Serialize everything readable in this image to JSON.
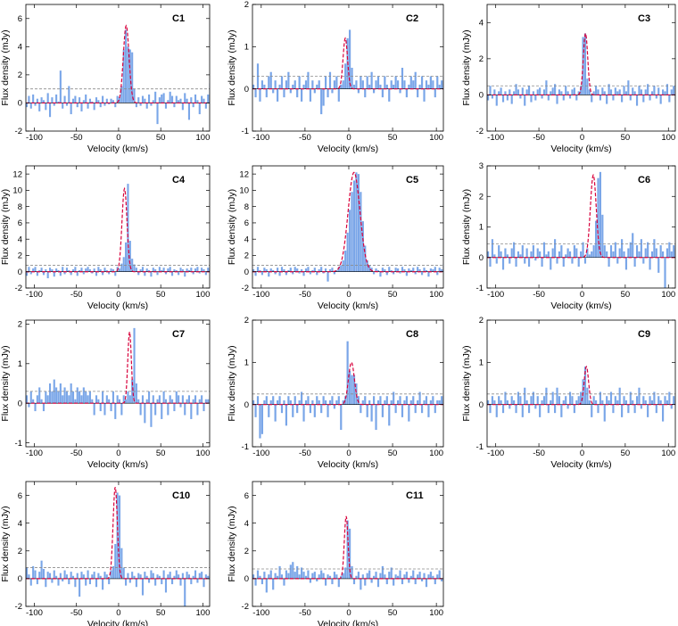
{
  "figure": {
    "style": {
      "bar_color": "#7aa6e8",
      "fit_color": "#d8003b",
      "rms_color": "#8c8c8c",
      "baseline_color": "#000000"
    },
    "shared": {
      "xlabel": "Velocity (km/s)",
      "ylabel": "Flux density (mJy)",
      "xlim": [
        -110,
        108
      ],
      "xticks": [
        -100,
        -50,
        0,
        50,
        100
      ]
    }
  },
  "chart_data": [
    {
      "type": "bar",
      "name": "C1",
      "title": "C1",
      "xlabel": "Velocity (km/s)",
      "ylabel": "Flux density (mJy)",
      "xlim": [
        -110,
        108
      ],
      "ylim": [
        -2,
        7
      ],
      "yticks": [
        -2,
        0,
        2,
        4,
        6
      ],
      "rms_level": 1.0,
      "line": {
        "center": 9,
        "peak": 5.5,
        "fwhm": 8
      },
      "channels": {
        "start": -110,
        "width": 2.5
      },
      "values": [
        -0.3,
        0.5,
        -0.4,
        0.6,
        -0.2,
        0.3,
        -0.6,
        0.4,
        0.2,
        -0.5,
        0.7,
        -1.0,
        0.4,
        -0.2,
        0.6,
        0.1,
        2.3,
        -0.4,
        0.5,
        -0.2,
        1.2,
        -0.8,
        0.3,
        0.5,
        -0.3,
        0.4,
        -0.6,
        0.2,
        0.6,
        -0.4,
        0.3,
        0.1,
        -0.5,
        0.4,
        0.2,
        -0.3,
        0.5,
        -0.2,
        0.3,
        -0.1,
        0.3,
        0.2,
        -0.3,
        0.5,
        0.4,
        1.2,
        3.8,
        5.2,
        4.0,
        3.8,
        3.6,
        1.0,
        -0.3,
        0.4,
        -0.2,
        0.5,
        0.3,
        -0.4,
        0.6,
        -0.2,
        0.2,
        0.8,
        -1.5,
        0.4,
        0.6,
        0.7,
        -0.4,
        0.2,
        0.8,
        0.5,
        -0.3,
        0.5,
        0.2,
        0.3,
        -0.5,
        0.7,
        0.3,
        -1.2,
        0.4,
        -0.3,
        0.6,
        0.2,
        -0.8,
        0.5,
        0.3,
        -0.4,
        0.6,
        1.4
      ]
    },
    {
      "type": "bar",
      "name": "C2",
      "title": "C2",
      "xlabel": "Velocity (km/s)",
      "ylabel": "Flux density (mJy)",
      "xlim": [
        -110,
        108
      ],
      "ylim": [
        -1,
        2
      ],
      "yticks": [
        -1,
        0,
        1,
        2
      ],
      "rms_level": 0.3,
      "line": {
        "center": -4,
        "peak": 1.2,
        "fwhm": 6
      },
      "channels": {
        "start": -110,
        "width": 2.5
      },
      "values": [
        0.1,
        -0.2,
        0.6,
        -0.3,
        0.2,
        0.1,
        -0.2,
        0.3,
        0.4,
        -0.1,
        0.2,
        -0.3,
        0.1,
        0.3,
        -0.2,
        0.2,
        0.4,
        -0.1,
        0.1,
        0.2,
        -0.2,
        0.3,
        -0.3,
        0.1,
        0.2,
        0.4,
        -0.3,
        0.2,
        -0.1,
        0.1,
        0.2,
        -0.6,
        -0.4,
        0.3,
        -0.2,
        0.4,
        -0.1,
        0.2,
        0.3,
        -0.3,
        0.1,
        0.2,
        0.6,
        1.2,
        1.4,
        0.5,
        0.1,
        0.2,
        -0.1,
        0.3,
        0.2,
        -0.2,
        0.3,
        0.1,
        0.4,
        -0.1,
        0.2,
        0.3,
        0.1,
        -0.2,
        0.3,
        0.1,
        -0.3,
        0.2,
        0.1,
        0.3,
        0.2,
        -0.1,
        0.5,
        0.2,
        -0.2,
        0.1,
        0.3,
        0.2,
        0.4,
        -0.2,
        0.1,
        0.3,
        -0.3,
        0.2,
        0.1,
        0.3,
        0.2,
        -0.2,
        0.3,
        0.1,
        0.2,
        0.3
      ]
    },
    {
      "type": "bar",
      "name": "C3",
      "title": "C3",
      "xlabel": "Velocity (km/s)",
      "ylabel": "Flux density (mJy)",
      "xlim": [
        -110,
        108
      ],
      "ylim": [
        -2,
        5
      ],
      "yticks": [
        -2,
        0,
        2,
        4
      ],
      "rms_level": 0.5,
      "line": {
        "center": 4,
        "peak": 3.4,
        "fwhm": 6
      },
      "channels": {
        "start": -110,
        "width": 2.5
      },
      "values": [
        -0.3,
        0.5,
        -0.2,
        0.3,
        -0.6,
        0.2,
        0.4,
        -0.4,
        0.2,
        -0.3,
        0.3,
        -0.5,
        0.2,
        0.6,
        0.3,
        -0.2,
        0.4,
        -0.6,
        0.3,
        0.5,
        -0.4,
        0.2,
        -0.3,
        0.3,
        0.4,
        -0.2,
        0.3,
        0.8,
        -0.3,
        0.2,
        0.4,
        0.6,
        -0.5,
        0.3,
        0.2,
        -0.3,
        0.5,
        0.2,
        -0.2,
        0.3,
        0.4,
        -0.3,
        0.2,
        0.5,
        3.2,
        3.4,
        0.9,
        0.3,
        -0.4,
        0.2,
        0.5,
        0.3,
        -0.3,
        0.4,
        0.2,
        -0.5,
        0.6,
        0.3,
        -0.3,
        0.4,
        0.2,
        0.3,
        -0.4,
        0.5,
        0.2,
        0.8,
        -0.3,
        0.4,
        0.2,
        -0.6,
        0.5,
        0.3,
        -0.4,
        0.3,
        0.6,
        -0.3,
        0.2,
        0.5,
        -0.2,
        0.4,
        -0.5,
        0.3,
        0.2,
        0.6,
        -0.4,
        0.3,
        0.5,
        -0.3
      ]
    },
    {
      "type": "bar",
      "name": "C4",
      "title": "C4",
      "xlabel": "Velocity (km/s)",
      "ylabel": "Flux density (mJy)",
      "xlim": [
        -110,
        108
      ],
      "ylim": [
        -2,
        13
      ],
      "yticks": [
        -2,
        0,
        2,
        4,
        6,
        8,
        10,
        12
      ],
      "rms_level": 0.8,
      "line": {
        "center": 7,
        "peak": 10.2,
        "fwhm": 7
      },
      "channels": {
        "start": -110,
        "width": 2.5
      },
      "values": [
        -0.5,
        0.6,
        -0.3,
        0.4,
        0.6,
        -0.5,
        0.2,
        0.5,
        -0.4,
        0.3,
        -0.8,
        0.5,
        0.3,
        -0.6,
        0.4,
        0.2,
        -0.5,
        0.6,
        -0.3,
        0.5,
        0.2,
        -0.4,
        0.3,
        0.6,
        -0.5,
        0.2,
        0.5,
        -0.3,
        0.4,
        0.6,
        0.3,
        -0.2,
        0.4,
        -0.5,
        0.6,
        0.3,
        -0.4,
        0.5,
        0.2,
        -0.3,
        0.4,
        0.3,
        -0.5,
        0.6,
        0.4,
        1.0,
        1.8,
        3.6,
        10.8,
        3.8,
        1.6,
        0.9,
        0.5,
        -0.4,
        0.3,
        0.6,
        -0.5,
        0.4,
        0.2,
        -0.6,
        0.5,
        0.3,
        -0.4,
        0.6,
        0.2,
        0.5,
        -0.3,
        0.4,
        0.6,
        -0.5,
        0.3,
        0.2,
        -0.4,
        0.5,
        0.3,
        -0.6,
        0.4,
        0.2,
        0.5,
        -0.3,
        0.4,
        0.6,
        -0.2,
        0.5,
        0.3,
        -0.4,
        0.5,
        0.3
      ]
    },
    {
      "type": "bar",
      "name": "C5",
      "title": "C5",
      "xlabel": "Velocity (km/s)",
      "ylabel": "Flux density (mJy)",
      "xlim": [
        -110,
        108
      ],
      "ylim": [
        -2,
        13
      ],
      "yticks": [
        -2,
        0,
        2,
        4,
        6,
        8,
        10,
        12
      ],
      "rms_level": 0.8,
      "line": {
        "center": 6,
        "peak": 12.2,
        "fwhm": 16
      },
      "channels": {
        "start": -110,
        "width": 2.5
      },
      "values": [
        0.3,
        -0.5,
        0.6,
        0.2,
        -0.4,
        0.5,
        0.3,
        -0.6,
        0.4,
        0.2,
        -0.3,
        0.5,
        -0.5,
        0.6,
        0.3,
        -0.4,
        0.2,
        0.5,
        -0.3,
        0.6,
        0.4,
        -0.2,
        0.3,
        -0.5,
        0.4,
        0.6,
        -0.3,
        0.2,
        0.5,
        -0.4,
        0.3,
        0.6,
        -0.2,
        0.4,
        -1.2,
        0.3,
        0.5,
        -0.3,
        0.2,
        0.6,
        0.8,
        1.4,
        2.6,
        4.8,
        7.6,
        9.8,
        11.2,
        12.2,
        12.0,
        9.8,
        6.2,
        3.2,
        1.4,
        0.8,
        0.5,
        -0.3,
        0.4,
        0.2,
        -0.6,
        0.5,
        0.3,
        -0.4,
        0.6,
        0.2,
        -0.3,
        0.5,
        0.4,
        -0.2,
        0.6,
        0.3,
        -0.5,
        0.4,
        0.2,
        0.5,
        -0.3,
        0.6,
        0.3,
        -0.4,
        0.5,
        0.2,
        -0.6,
        0.4,
        0.3,
        0.6,
        -0.4,
        0.5,
        0.3,
        1.0
      ]
    },
    {
      "type": "bar",
      "name": "C6",
      "title": "C6",
      "xlabel": "Velocity (km/s)",
      "ylabel": "Flux density (mJy)",
      "xlim": [
        -110,
        108
      ],
      "ylim": [
        -1,
        3
      ],
      "yticks": [
        -1,
        0,
        1,
        2,
        3
      ],
      "rms_level": 0.45,
      "line": {
        "center": 13,
        "peak": 2.7,
        "fwhm": 8
      },
      "channels": {
        "start": -110,
        "width": 2.5
      },
      "values": [
        0.2,
        -0.3,
        0.6,
        0.1,
        -0.2,
        0.4,
        0.2,
        -0.4,
        0.3,
        0.1,
        -0.2,
        0.3,
        0.5,
        -0.3,
        0.2,
        0.1,
        0.4,
        -0.2,
        0.3,
        -0.3,
        0.2,
        0.4,
        -0.1,
        0.3,
        0.2,
        -0.3,
        0.5,
        0.1,
        0.2,
        -0.4,
        0.3,
        0.6,
        -0.2,
        0.2,
        0.4,
        -0.3,
        0.1,
        0.3,
        0.2,
        -0.2,
        0.4,
        0.3,
        -0.3,
        0.2,
        0.5,
        -0.2,
        0.3,
        0.1,
        0.2,
        0.4,
        1.2,
        2.6,
        2.8,
        1.4,
        0.4,
        0.2,
        -0.3,
        0.4,
        0.2,
        0.5,
        -0.2,
        0.3,
        0.6,
        0.2,
        -0.4,
        0.3,
        0.5,
        0.8,
        -0.3,
        0.4,
        0.2,
        0.6,
        -0.2,
        0.3,
        0.5,
        -0.4,
        0.2,
        0.6,
        0.3,
        -0.5,
        0.4,
        0.2,
        -1.0,
        0.3,
        0.5,
        0.2,
        0.4,
        0.3
      ]
    },
    {
      "type": "bar",
      "name": "C7",
      "title": "C7",
      "xlabel": "Velocity (km/s)",
      "ylabel": "Flux density (mJy)",
      "xlim": [
        -110,
        108
      ],
      "ylim": [
        -1.1,
        2.1
      ],
      "yticks": [
        -1,
        0,
        1,
        2
      ],
      "rms_level": 0.3,
      "line": {
        "center": 13,
        "peak": 1.8,
        "fwhm": 5
      },
      "channels": {
        "start": -110,
        "width": 2.5
      },
      "values": [
        0.2,
        -0.1,
        0.3,
        0.1,
        -0.2,
        0.2,
        0.4,
        0.1,
        -0.2,
        0.3,
        0.2,
        0.5,
        0.3,
        0.6,
        0.4,
        0.3,
        0.5,
        0.2,
        0.4,
        0.3,
        0.2,
        0.5,
        0.3,
        0.1,
        0.4,
        0.3,
        0.2,
        0.4,
        0.3,
        0.2,
        0.3,
        0.1,
        -0.3,
        0.2,
        0.1,
        -0.2,
        0.3,
        -0.3,
        0.2,
        0.1,
        -0.2,
        0.3,
        -0.4,
        0.2,
        0.1,
        -0.3,
        0.2,
        0.1,
        0.3,
        0.2,
        0.6,
        1.9,
        0.5,
        0.1,
        -0.3,
        0.2,
        -0.5,
        0.1,
        0.3,
        -0.6,
        0.2,
        -0.3,
        0.1,
        0.2,
        -0.4,
        0.3,
        0.1,
        -0.3,
        0.2,
        0.1,
        -0.2,
        0.3,
        0.2,
        -0.1,
        0.2,
        -0.3,
        0.1,
        0.2,
        -0.4,
        0.1,
        0.2,
        -0.3,
        0.1,
        0.2,
        -0.2,
        0.1,
        0.1,
        0.2
      ]
    },
    {
      "type": "bar",
      "name": "C8",
      "title": "C8",
      "xlabel": "Velocity (km/s)",
      "ylabel": "Flux density (mJy)",
      "xlim": [
        -110,
        108
      ],
      "ylim": [
        -1,
        2
      ],
      "yticks": [
        -1,
        0,
        1,
        2
      ],
      "rms_level": 0.25,
      "line": {
        "center": 3,
        "peak": 1.0,
        "fwhm": 8
      },
      "channels": {
        "start": -110,
        "width": 2.5
      },
      "values": [
        0.1,
        -0.3,
        0.2,
        -0.8,
        -0.7,
        0.1,
        0.2,
        -0.3,
        0.1,
        0.2,
        -0.4,
        0.1,
        0.2,
        -0.2,
        0.1,
        -0.5,
        0.2,
        0.1,
        -0.3,
        0.2,
        -0.2,
        0.1,
        0.3,
        -0.4,
        0.1,
        0.2,
        -0.2,
        0.1,
        -0.3,
        0.2,
        0.1,
        -0.2,
        0.2,
        0.1,
        -0.3,
        0.1,
        0.2,
        -0.1,
        0.1,
        0.2,
        -0.6,
        0.1,
        0.2,
        1.5,
        0.8,
        0.7,
        0.7,
        0.5,
        0.2,
        -0.2,
        0.1,
        0.2,
        -0.3,
        0.1,
        -0.4,
        0.2,
        -0.6,
        0.1,
        0.2,
        -0.3,
        0.1,
        0.2,
        -0.5,
        0.1,
        0.3,
        -0.2,
        0.1,
        0.2,
        -0.3,
        0.1,
        0.2,
        -0.4,
        0.1,
        0.2,
        -0.2,
        0.1,
        0.3,
        -0.2,
        0.1,
        0.2,
        -0.3,
        0.1,
        0.2,
        -0.2,
        0.1,
        0.1,
        0.2,
        0.1
      ]
    },
    {
      "type": "bar",
      "name": "C9",
      "title": "C9",
      "xlabel": "Velocity (km/s)",
      "ylabel": "Flux density (mJy)",
      "xlim": [
        -110,
        108
      ],
      "ylim": [
        -1,
        2
      ],
      "yticks": [
        -1,
        0,
        1,
        2
      ],
      "rms_level": 0.25,
      "line": {
        "center": 5,
        "peak": 0.9,
        "fwhm": 6
      },
      "channels": {
        "start": -110,
        "width": 2.5
      },
      "values": [
        0.1,
        -0.2,
        0.2,
        0.1,
        -0.3,
        0.2,
        0.1,
        -0.2,
        0.3,
        0.1,
        -0.1,
        0.2,
        0.1,
        -0.2,
        0.3,
        0.2,
        -0.3,
        0.4,
        0.1,
        -0.2,
        0.2,
        0.3,
        -0.1,
        0.2,
        -0.3,
        0.1,
        0.2,
        0.4,
        -0.2,
        0.1,
        0.3,
        -0.2,
        0.4,
        0.2,
        -0.3,
        0.1,
        0.2,
        -0.1,
        0.3,
        0.2,
        -0.2,
        0.1,
        0.2,
        0.3,
        0.6,
        0.9,
        0.4,
        0.1,
        -0.3,
        0.2,
        0.1,
        -0.2,
        0.3,
        0.1,
        -0.4,
        0.2,
        0.1,
        0.3,
        -0.2,
        0.2,
        0.1,
        0.4,
        -0.3,
        0.2,
        0.1,
        -0.2,
        0.3,
        0.1,
        -0.2,
        0.2,
        0.4,
        -0.1,
        0.2,
        0.1,
        -0.3,
        0.2,
        0.1,
        0.3,
        -0.2,
        0.2,
        0.1,
        -0.4,
        0.2,
        0.1,
        0.3,
        -0.1,
        0.2,
        0.1
      ]
    },
    {
      "type": "bar",
      "name": "C10",
      "title": "C10",
      "xlabel": "Velocity (km/s)",
      "ylabel": "Flux density (mJy)",
      "xlim": [
        -110,
        108
      ],
      "ylim": [
        -2,
        7
      ],
      "yticks": [
        -2,
        0,
        2,
        4,
        6
      ],
      "rms_level": 0.8,
      "line": {
        "center": -4,
        "peak": 6.6,
        "fwhm": 6
      },
      "channels": {
        "start": -110,
        "width": 2.5
      },
      "values": [
        0.8,
        0.3,
        -0.5,
        0.9,
        0.6,
        -0.4,
        0.5,
        1.3,
        0.7,
        -0.6,
        0.5,
        0.4,
        -0.3,
        0.6,
        0.2,
        -0.5,
        0.4,
        -0.2,
        0.6,
        0.3,
        -0.4,
        0.5,
        0.2,
        -0.6,
        0.4,
        -1.3,
        0.5,
        0.3,
        -0.5,
        0.6,
        -0.4,
        0.3,
        0.5,
        -0.6,
        0.4,
        0.2,
        -0.8,
        0.5,
        0.3,
        -0.4,
        0.6,
        0.9,
        2.5,
        6.2,
        6.0,
        2.2,
        0.8,
        -0.5,
        0.4,
        -0.3,
        0.5,
        0.2,
        -0.6,
        0.4,
        0.3,
        -1.2,
        0.5,
        0.2,
        -0.3,
        0.6,
        0.4,
        -0.5,
        0.3,
        0.2,
        -0.4,
        0.6,
        -1.0,
        0.3,
        0.5,
        -0.4,
        0.2,
        0.6,
        0.3,
        -0.5,
        0.4,
        -2.0,
        0.5,
        0.3,
        -0.4,
        0.2,
        0.6,
        -0.3,
        0.4,
        0.5,
        -0.6,
        0.3,
        0.2,
        0.4
      ]
    },
    {
      "type": "bar",
      "name": "C11",
      "title": "C11",
      "xlabel": "Velocity (km/s)",
      "ylabel": "Flux density (mJy)",
      "xlim": [
        -110,
        108
      ],
      "ylim": [
        -2,
        7
      ],
      "yticks": [
        -2,
        0,
        2,
        4,
        6
      ],
      "rms_level": 0.7,
      "line": {
        "center": -3,
        "peak": 4.5,
        "fwhm": 5
      },
      "channels": {
        "start": -110,
        "width": 2.5
      },
      "values": [
        0.3,
        -0.5,
        0.6,
        0.2,
        -0.4,
        0.5,
        -1.0,
        0.3,
        0.6,
        -0.8,
        0.4,
        0.2,
        0.9,
        0.3,
        -0.5,
        0.6,
        0.4,
        1.0,
        1.2,
        0.5,
        0.9,
        0.3,
        0.8,
        0.5,
        0.2,
        0.6,
        -0.3,
        0.4,
        0.5,
        -0.2,
        0.3,
        0.6,
        0.4,
        -0.5,
        0.3,
        0.2,
        -0.4,
        0.5,
        0.3,
        -0.6,
        0.2,
        0.4,
        0.8,
        4.2,
        3.6,
        0.9,
        -0.4,
        0.2,
        0.5,
        -0.8,
        0.3,
        -0.5,
        0.4,
        0.6,
        -0.3,
        0.2,
        0.5,
        -0.6,
        0.4,
        0.9,
        0.3,
        -0.4,
        0.5,
        0.8,
        -0.5,
        0.3,
        0.2,
        0.6,
        -0.4,
        0.3,
        0.5,
        -0.3,
        0.2,
        0.6,
        -0.4,
        0.3,
        0.5,
        -0.2,
        0.4,
        -0.6,
        0.3,
        0.5,
        0.2,
        -0.4,
        0.3,
        0.6,
        -0.2,
        0.4
      ]
    }
  ]
}
